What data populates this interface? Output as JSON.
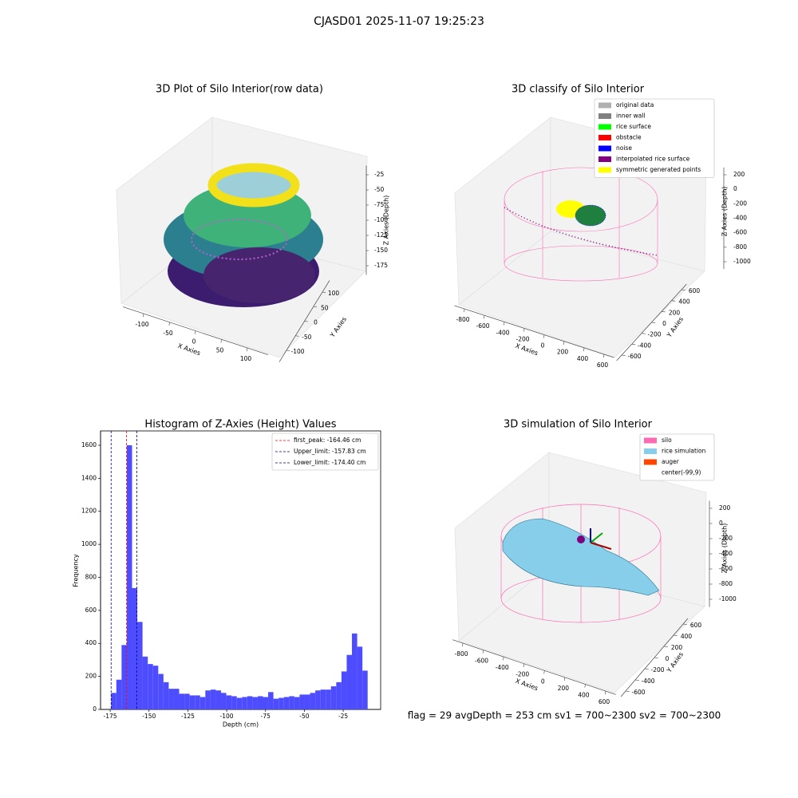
{
  "title": "CJASD01 2025-11-07 19:25:23",
  "footer": "flag = 29  avgDepth = 253 cm  sv1 = 700~2300  sv2 = 700~2300",
  "chart_data": [
    {
      "type": "scatter3d",
      "title": "3D Plot of Silo Interior(row data)",
      "xlabel": "X Axies",
      "ylabel": "Y Axies",
      "zlabel": "Z Axies (Depth)",
      "xlim": [
        -140,
        140
      ],
      "xticks": [
        -100,
        -50,
        0,
        50,
        100
      ],
      "ylim": [
        -140,
        140
      ],
      "yticks": [
        -100,
        -50,
        0,
        50,
        100
      ],
      "zlim": [
        -190,
        -10
      ],
      "zticks": [
        -175,
        -150,
        -125,
        -100,
        -75,
        -50,
        -25
      ]
    },
    {
      "type": "scatter3d",
      "title": "3D classify of Silo Interior",
      "xlabel": "X Axies",
      "ylabel": "Y Axies",
      "zlabel": "Z Axies (Depth)",
      "xlim": [
        -900,
        700
      ],
      "xticks": [
        -800,
        -600,
        -400,
        -200,
        0,
        200,
        400,
        600
      ],
      "ylim": [
        -700,
        700
      ],
      "yticks": [
        -600,
        -400,
        -200,
        0,
        200,
        400,
        600
      ],
      "zlim": [
        -1100,
        300
      ],
      "zticks": [
        -1000,
        -800,
        -600,
        -400,
        -200,
        0,
        200
      ],
      "series": [
        {
          "name": "original data",
          "color": "#b0b0b0"
        },
        {
          "name": "inner wall",
          "color": "#808080"
        },
        {
          "name": "rice surface",
          "color": "#00ff00"
        },
        {
          "name": "obstacle",
          "color": "#ff0000"
        },
        {
          "name": "noise",
          "color": "#0000ff"
        },
        {
          "name": "interpolated rice surface",
          "color": "#800080"
        },
        {
          "name": "symmetric generated points",
          "color": "#ffff00"
        }
      ]
    },
    {
      "type": "histogram",
      "title": "Histogram of Z-Axies (Height) Values",
      "xlabel": "Depth (cm)",
      "ylabel": "Frequency",
      "color": "#4d4dff",
      "bins": [
        -174.4,
        -171.03,
        -167.66,
        -164.29,
        -160.92,
        -157.55,
        -154.18,
        -150.81,
        -147.44,
        -144.07,
        -140.7,
        -137.33,
        -133.96,
        -130.59,
        -127.22,
        -123.85,
        -120.48,
        -117.11,
        -113.74,
        -110.37,
        -107.0,
        -103.63,
        -100.26,
        -96.89,
        -93.52,
        -90.15,
        -86.78,
        -83.41,
        -80.04,
        -76.67,
        -73.3,
        -69.93,
        -66.56,
        -63.19,
        -59.82,
        -56.45,
        -53.08,
        -49.71,
        -46.34,
        -42.97,
        -39.6,
        -36.23,
        -32.86,
        -29.49,
        -26.12,
        -22.75,
        -19.38,
        -16.01,
        -12.64,
        -9.27
      ],
      "values": [
        100,
        180,
        390,
        1600,
        735,
        530,
        320,
        275,
        265,
        215,
        165,
        125,
        125,
        95,
        95,
        85,
        85,
        75,
        115,
        120,
        115,
        100,
        85,
        80,
        70,
        75,
        80,
        75,
        80,
        75,
        105,
        65,
        70,
        75,
        80,
        75,
        90,
        90,
        100,
        115,
        120,
        120,
        140,
        165,
        230,
        330,
        460,
        380,
        235
      ],
      "xlim": [
        -181.2,
        -0.9
      ],
      "xticks": [
        -175,
        -150,
        -125,
        -100,
        -75,
        -50,
        -25
      ],
      "ylim": [
        0,
        1687
      ],
      "yticks": [
        0,
        200,
        400,
        600,
        800,
        1000,
        1200,
        1400,
        1600
      ],
      "legend": "upper right",
      "vlines": [
        {
          "name": "first_peak: -164.46 cm",
          "value": -164.46,
          "color": "#ff0000"
        },
        {
          "name": "Upper_limit: -157.83 cm",
          "value": -157.83,
          "color": "#00008b"
        },
        {
          "name": "Lower_limit: -174.40 cm",
          "value": -174.4,
          "color": "#00008b"
        }
      ]
    },
    {
      "type": "surface3d",
      "title": "3D simulation of Silo Interior",
      "xlabel": "X Axies",
      "ylabel": "Y Axies",
      "zlabel": "Z Axies (Depth)",
      "xlim": [
        -900,
        700
      ],
      "xticks": [
        -800,
        -600,
        -400,
        -200,
        0,
        200,
        400,
        600
      ],
      "ylim": [
        -700,
        700
      ],
      "yticks": [
        -600,
        -400,
        -200,
        0,
        200,
        400,
        600
      ],
      "zlim": [
        -1100,
        300
      ],
      "zticks": [
        -1000,
        -800,
        -600,
        -400,
        -200,
        0,
        200
      ],
      "series": [
        {
          "name": "silo",
          "color": "#ff69b4"
        },
        {
          "name": "rice simulation",
          "color": "#87ceeb"
        },
        {
          "name": "auger",
          "color": "#ff4500"
        },
        {
          "name": "center(-99,9)",
          "color": "#ffffff"
        }
      ]
    }
  ]
}
